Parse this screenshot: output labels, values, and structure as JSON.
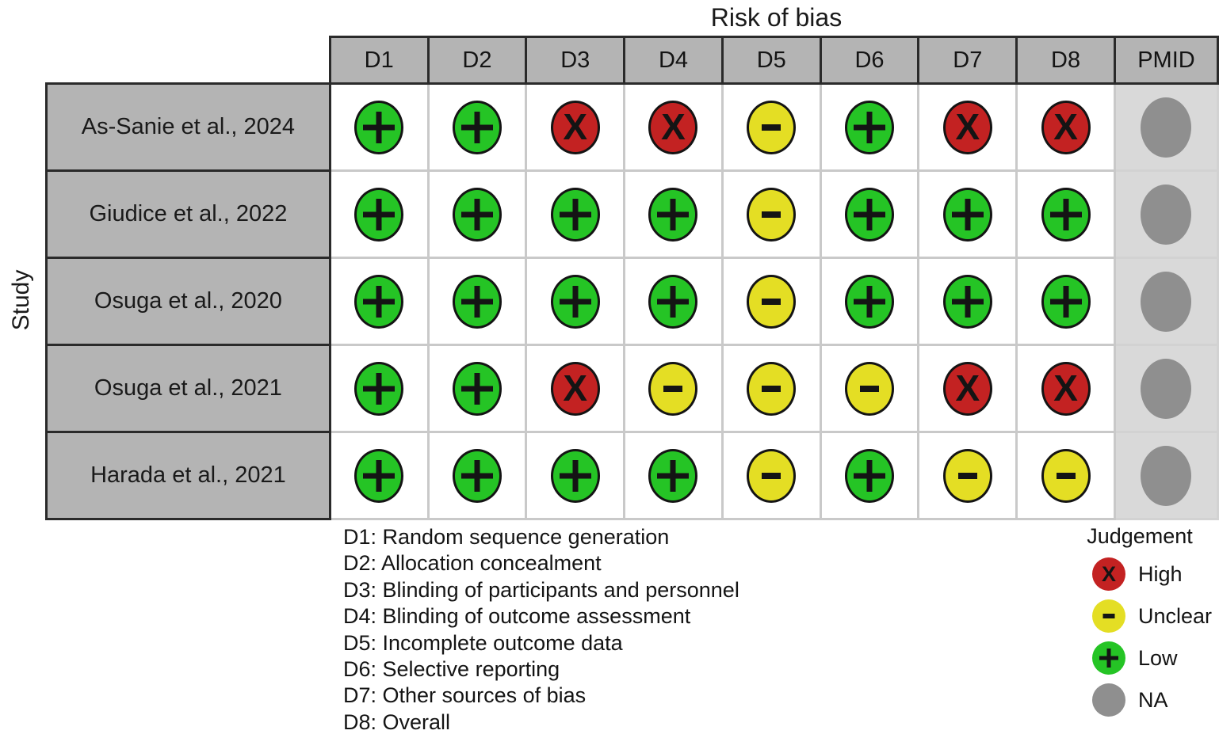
{
  "title": "Risk of bias",
  "y_axis_label": "Study",
  "columns": [
    "D1",
    "D2",
    "D3",
    "D4",
    "D5",
    "D6",
    "D7",
    "D8",
    "PMID"
  ],
  "chart_data": {
    "type": "heatmap",
    "title": "Risk of bias",
    "ylabel": "Study",
    "columns": [
      "D1",
      "D2",
      "D3",
      "D4",
      "D5",
      "D6",
      "D7",
      "D8"
    ],
    "extra_column": "PMID",
    "legend_position": "bottom-right",
    "rows": [
      {
        "study": "As-Sanie et al., 2024",
        "judgements": [
          "low",
          "low",
          "high",
          "high",
          "unclear",
          "low",
          "high",
          "high"
        ],
        "pmid": "na"
      },
      {
        "study": "Giudice et al., 2022",
        "judgements": [
          "low",
          "low",
          "low",
          "low",
          "unclear",
          "low",
          "low",
          "low"
        ],
        "pmid": "na"
      },
      {
        "study": "Osuga et al., 2020",
        "judgements": [
          "low",
          "low",
          "low",
          "low",
          "unclear",
          "low",
          "low",
          "low"
        ],
        "pmid": "na"
      },
      {
        "study": "Osuga et al., 2021",
        "judgements": [
          "low",
          "low",
          "high",
          "unclear",
          "unclear",
          "unclear",
          "high",
          "high"
        ],
        "pmid": "na"
      },
      {
        "study": "Harada et al., 2021",
        "judgements": [
          "low",
          "low",
          "low",
          "low",
          "unclear",
          "low",
          "unclear",
          "unclear"
        ],
        "pmid": "na"
      }
    ]
  },
  "judgement_styles": {
    "high": {
      "symbol": "X",
      "label": "High",
      "color": "#c32222"
    },
    "unclear": {
      "symbol": "-",
      "label": "Unclear",
      "color": "#e4de24"
    },
    "low": {
      "symbol": "+",
      "label": "Low",
      "color": "#25c425"
    },
    "na": {
      "symbol": "",
      "label": "NA",
      "color": "#8f8f8f"
    }
  },
  "domain_legend": [
    "D1: Random sequence generation",
    "D2: Allocation concealment",
    "D3: Blinding of participants and personnel",
    "D4: Blinding of outcome assessment",
    "D5: Incomplete outcome data",
    "D6: Selective reporting",
    "D7: Other sources of bias",
    "D8: Overall"
  ],
  "judgement_legend": {
    "title": "Judgement",
    "items": [
      {
        "key": "high",
        "label": "High"
      },
      {
        "key": "unclear",
        "label": "Unclear"
      },
      {
        "key": "low",
        "label": "Low"
      },
      {
        "key": "na",
        "label": "NA"
      }
    ]
  },
  "colors": {
    "header_bg": "#b4b4b4",
    "row_label_bg": "#b4b4b4",
    "pmid_cell_bg": "#d9d9d9",
    "dark_border": "#2a2a2a",
    "light_grid": "#c9c9c9",
    "symbol": "#141414"
  }
}
